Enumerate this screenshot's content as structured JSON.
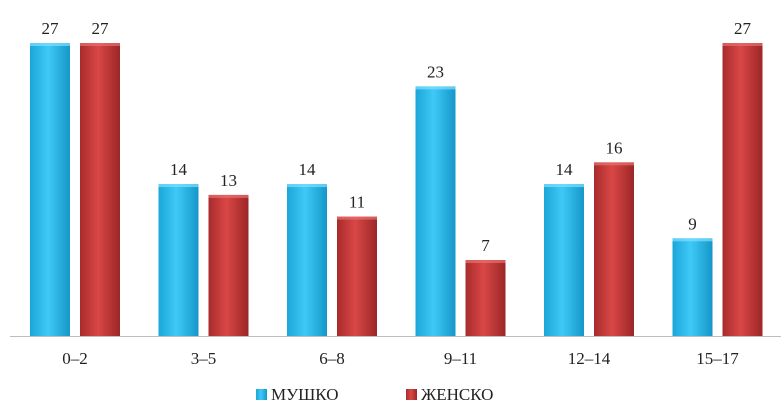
{
  "chart_data": {
    "type": "bar",
    "categories": [
      "0–2",
      "3–5",
      "6–8",
      "9–11",
      "12–14",
      "15–17"
    ],
    "series": [
      {
        "name": "МУШКО",
        "values": [
          27,
          14,
          14,
          23,
          14,
          9
        ],
        "color": "#22b9ee"
      },
      {
        "name": "ЖЕНСКО",
        "values": [
          27,
          13,
          11,
          7,
          16,
          27
        ],
        "color": "#c8393a"
      }
    ],
    "ylim": [
      0,
      27
    ],
    "grid": false,
    "legend": "bottom",
    "data_labels": true
  }
}
